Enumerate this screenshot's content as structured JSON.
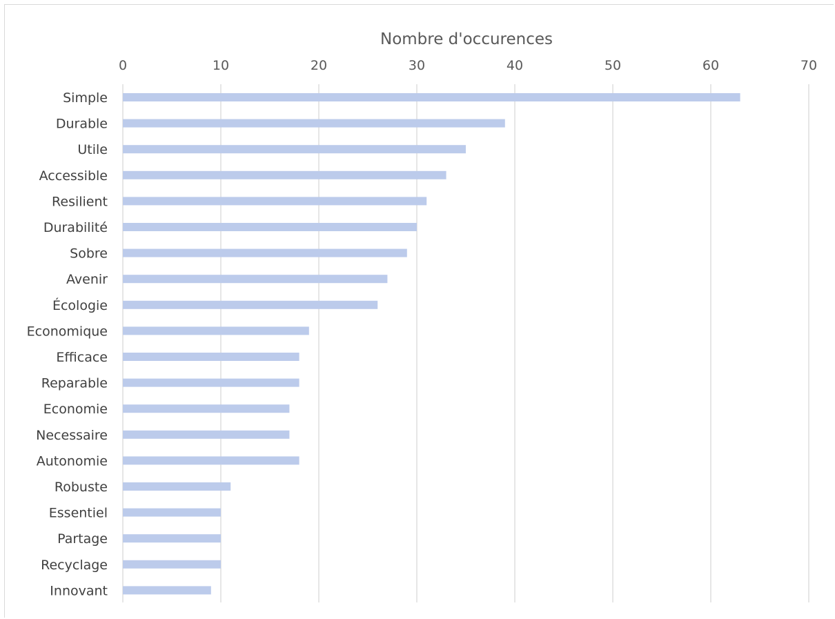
{
  "chart_data": {
    "type": "bar",
    "orientation": "horizontal",
    "title": "Nombre d'occurences",
    "xlim": [
      0,
      70
    ],
    "xticks": [
      0,
      10,
      20,
      30,
      40,
      50,
      60,
      70
    ],
    "axis_position": "top",
    "grid": true,
    "bar_color": "#bccbeb",
    "grid_color": "#d9d9d9",
    "categories": [
      "Simple",
      "Durable",
      "Utile",
      "Accessible",
      "Resilient",
      "Durabilité",
      "Sobre",
      "Avenir",
      "Écologie",
      "Economique",
      "Efficace",
      "Reparable",
      "Economie",
      "Necessaire",
      "Autonomie",
      "Robuste",
      "Essentiel",
      "Partage",
      "Recyclage",
      "Innovant"
    ],
    "values": [
      63,
      39,
      35,
      33,
      31,
      30,
      29,
      27,
      26,
      19,
      18,
      18,
      17,
      17,
      18,
      11,
      10,
      10,
      10,
      9
    ]
  }
}
